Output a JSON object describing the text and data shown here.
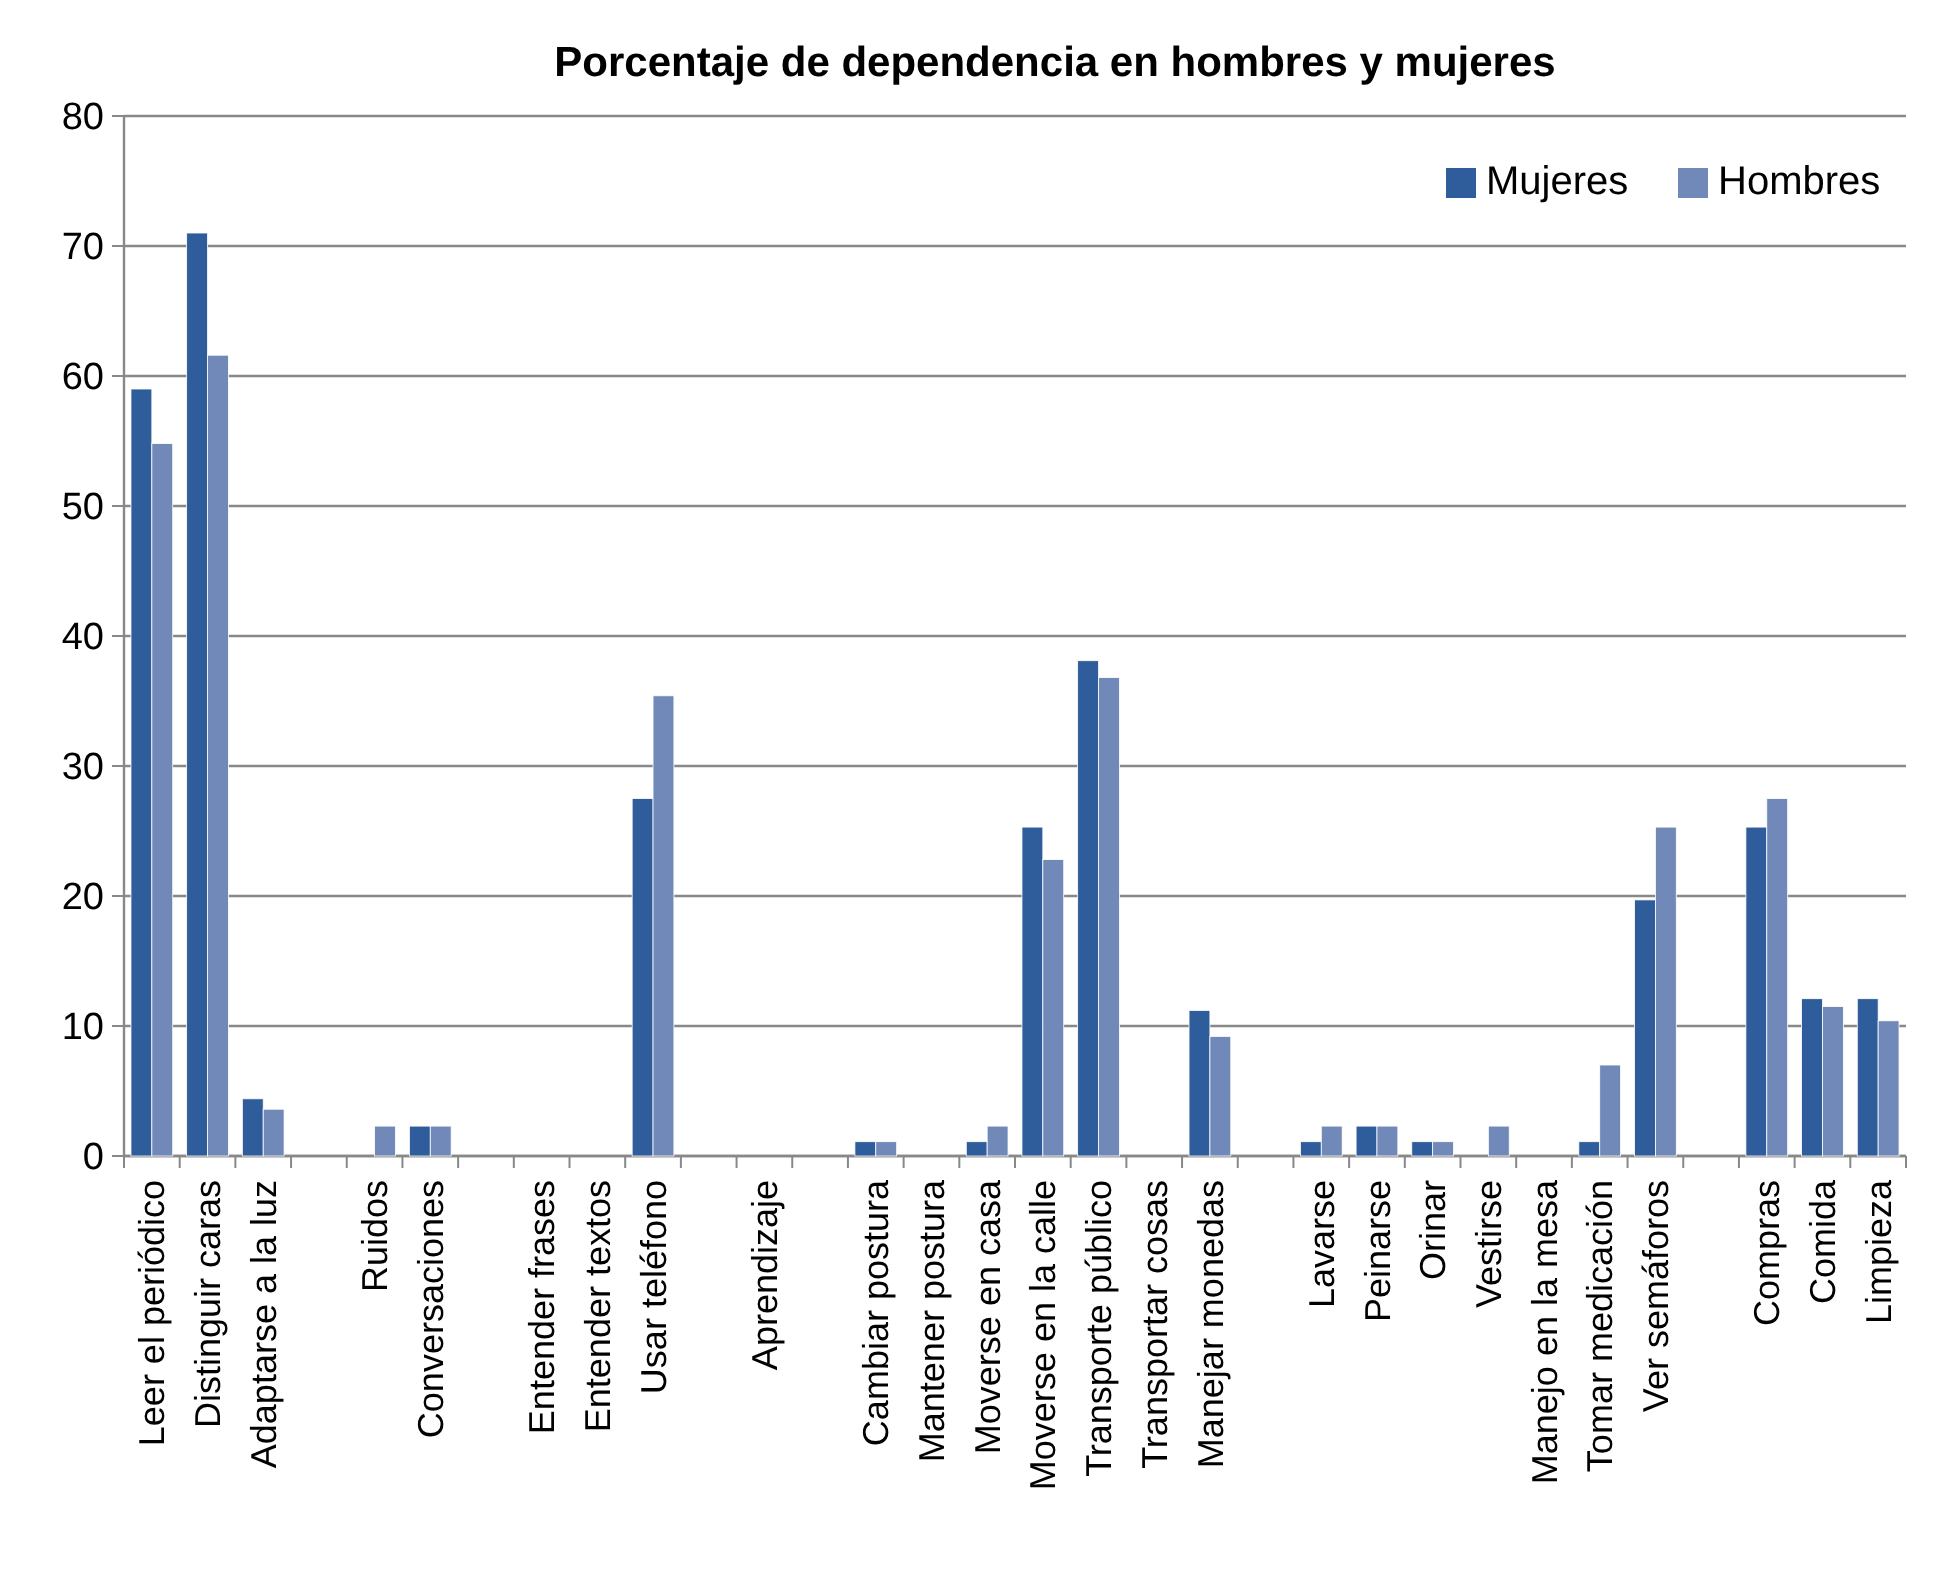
{
  "chart_data": {
    "type": "bar",
    "title": "Porcentaje de dependencia en hombres y mujeres",
    "categories": [
      "Leer el periódico",
      "Distinguir caras",
      "Adaptarse a la luz",
      null,
      "Ruidos",
      "Conversaciones",
      null,
      "Entender frases",
      "Entender textos",
      "Usar teléfono",
      null,
      "Aprendizaje",
      null,
      "Cambiar postura",
      "Mantener postura",
      "Moverse en casa",
      "Moverse en la calle",
      "Transporte público",
      "Transportar cosas",
      "Manejar monedas",
      null,
      "Lavarse",
      "Peinarse",
      "Orinar",
      "Vestirse",
      "Manejo en la mesa",
      "Tomar medicación",
      "Ver semáforos",
      null,
      "Compras",
      "Comida",
      "Limpieza"
    ],
    "series": [
      {
        "name": "Mujeres",
        "color": "#2f5d9b",
        "values": [
          59.0,
          71.0,
          4.4,
          null,
          0,
          2.3,
          null,
          0,
          0,
          27.5,
          null,
          0,
          null,
          1.1,
          0,
          1.1,
          25.3,
          38.1,
          0,
          11.2,
          null,
          1.1,
          2.3,
          1.1,
          0,
          0,
          1.1,
          19.7,
          null,
          25.3,
          12.1,
          12.1
        ]
      },
      {
        "name": "Hombres",
        "color": "#7189b9",
        "values": [
          54.8,
          61.6,
          3.6,
          null,
          2.3,
          2.3,
          null,
          0,
          0,
          35.4,
          null,
          0,
          null,
          1.1,
          0,
          2.3,
          22.8,
          36.8,
          0,
          9.2,
          null,
          2.3,
          2.3,
          1.1,
          2.3,
          0,
          7.0,
          25.3,
          null,
          27.5,
          11.5,
          10.4
        ]
      }
    ],
    "ylim": [
      0,
      80
    ],
    "yticks": [
      0,
      10,
      20,
      30,
      40,
      50,
      60,
      70,
      80
    ],
    "grid": "y",
    "legend": "top right"
  }
}
